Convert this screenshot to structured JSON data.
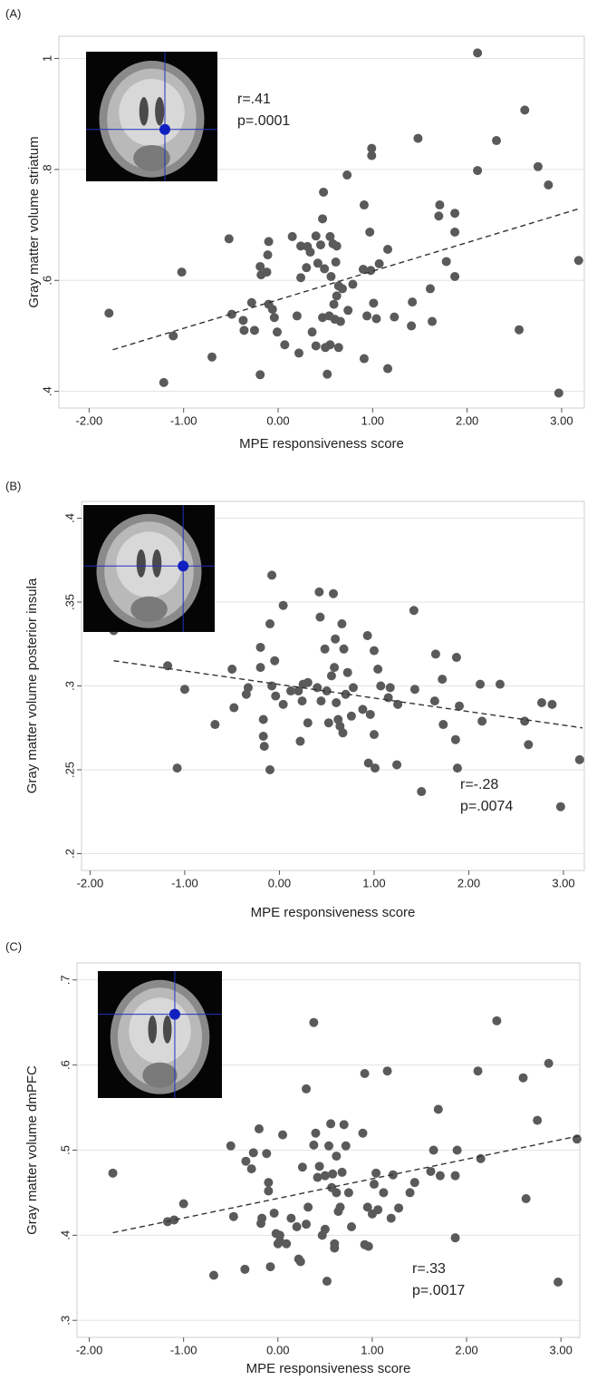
{
  "chart_data": [
    {
      "type": "scatter",
      "panel_label": "(A)",
      "xlabel": "MPE responsiveness score",
      "ylabel": "Gray matter volume striatum",
      "annotations": [
        "r=.41",
        "p=.0001"
      ],
      "color": "#5a5a5a",
      "grid": true,
      "xlim": [
        -2.32,
        3.24
      ],
      "ylim": [
        0.37,
        1.04
      ],
      "xticks": [
        {
          "value": -2,
          "label": "-2.00"
        },
        {
          "value": -1,
          "label": "-1.00"
        },
        {
          "value": 0,
          "label": "0.00"
        },
        {
          "value": 1,
          "label": "1.00"
        },
        {
          "value": 2,
          "label": "2.00"
        },
        {
          "value": 3,
          "label": "3.00"
        }
      ],
      "yticks": [
        {
          "value": 0.4,
          "label": ".4"
        },
        {
          "value": 0.6,
          "label": ".6"
        },
        {
          "value": 0.8,
          "label": ".8"
        },
        1
      ],
      "x": [
        -1.79,
        -1.21,
        -1.11,
        -1.02,
        -0.7,
        -0.52,
        -0.49,
        -0.37,
        -0.36,
        -0.28,
        -0.25,
        -0.19,
        -0.19,
        -0.18,
        -0.12,
        -0.11,
        -0.1,
        -0.1,
        -0.06,
        -0.04,
        -0.01,
        0.07,
        0.15,
        0.2,
        0.24,
        0.24,
        0.22,
        0.3,
        0.31,
        0.34,
        0.36,
        0.4,
        0.4,
        0.42,
        0.45,
        0.47,
        0.47,
        0.48,
        0.49,
        0.5,
        0.52,
        0.54,
        0.55,
        0.56,
        0.55,
        0.58,
        0.59,
        0.6,
        0.61,
        0.62,
        0.62,
        0.64,
        0.64,
        0.66,
        0.68,
        0.73,
        0.74,
        0.79,
        0.9,
        0.91,
        0.91,
        0.94,
        0.97,
        0.98,
        0.99,
        0.99,
        1.01,
        1.04,
        1.07,
        1.16,
        1.16,
        1.23,
        1.41,
        1.42,
        1.48,
        1.61,
        1.63,
        1.71,
        1.7,
        1.78,
        1.87,
        1.87,
        1.87,
        2.11,
        2.11,
        2.31,
        2.55,
        2.61,
        2.75,
        2.86,
        2.97,
        3.18
      ],
      "values": [
        0.541,
        0.416,
        0.5,
        0.615,
        0.462,
        0.675,
        0.539,
        0.528,
        0.51,
        0.56,
        0.51,
        0.625,
        0.43,
        0.61,
        0.615,
        0.646,
        0.67,
        0.557,
        0.548,
        0.533,
        0.507,
        0.484,
        0.679,
        0.536,
        0.662,
        0.605,
        0.469,
        0.623,
        0.661,
        0.651,
        0.507,
        0.68,
        0.482,
        0.631,
        0.664,
        0.533,
        0.711,
        0.759,
        0.621,
        0.479,
        0.431,
        0.536,
        0.679,
        0.607,
        0.484,
        0.666,
        0.557,
        0.53,
        0.633,
        0.572,
        0.662,
        0.59,
        0.479,
        0.526,
        0.585,
        0.79,
        0.546,
        0.593,
        0.62,
        0.736,
        0.459,
        0.536,
        0.687,
        0.618,
        0.825,
        0.838,
        0.559,
        0.531,
        0.63,
        0.441,
        0.656,
        0.534,
        0.518,
        0.561,
        0.856,
        0.585,
        0.526,
        0.736,
        0.716,
        0.634,
        0.721,
        0.607,
        0.687,
        0.798,
        1.01,
        0.852,
        0.511,
        0.907,
        0.805,
        0.772,
        0.397,
        0.636
      ],
      "trend": {
        "x": [
          -1.75,
          3.2
        ],
        "y": [
          0.475,
          0.73
        ]
      }
    },
    {
      "type": "scatter",
      "panel_label": "(B)",
      "xlabel": "MPE responsiveness score",
      "ylabel": "Gray matter volume posterior insula",
      "annotations": [
        "r=-.28",
        "p=.0074"
      ],
      "color": "#5a5a5a",
      "grid": true,
      "xlim": [
        -2.09,
        3.22
      ],
      "ylim": [
        0.19,
        0.41
      ],
      "xticks": [
        {
          "value": -2,
          "label": "-2.00"
        },
        {
          "value": -1,
          "label": "-1.00"
        },
        {
          "value": 0,
          "label": "0.00"
        },
        {
          "value": 1,
          "label": "1.00"
        },
        {
          "value": 2,
          "label": "2.00"
        },
        {
          "value": 3,
          "label": "3.00"
        }
      ],
      "yticks": [
        {
          "value": 0.2,
          "label": ".2"
        },
        {
          "value": 0.25,
          "label": ".25"
        },
        {
          "value": 0.3,
          "label": ".3"
        },
        {
          "value": 0.35,
          "label": ".35"
        },
        {
          "value": 0.4,
          "label": ".4"
        }
      ],
      "x": [
        -1.75,
        -1.18,
        -1.08,
        -1.0,
        -0.68,
        -0.5,
        -0.48,
        -0.35,
        -0.33,
        -0.2,
        -0.2,
        -0.17,
        -0.17,
        -0.16,
        -0.1,
        -0.1,
        -0.08,
        -0.08,
        -0.05,
        -0.04,
        0.04,
        0.04,
        0.12,
        0.2,
        0.22,
        0.24,
        0.25,
        0.3,
        0.3,
        0.4,
        0.42,
        0.43,
        0.44,
        0.48,
        0.5,
        0.52,
        0.55,
        0.57,
        0.58,
        0.59,
        0.6,
        0.62,
        0.64,
        0.66,
        0.67,
        0.68,
        0.7,
        0.72,
        0.76,
        0.78,
        0.88,
        0.93,
        0.94,
        0.96,
        1.0,
        1.0,
        1.01,
        1.04,
        1.07,
        1.15,
        1.17,
        1.24,
        1.25,
        1.42,
        1.43,
        1.5,
        1.64,
        1.65,
        1.72,
        1.73,
        1.86,
        1.87,
        1.88,
        1.9,
        2.12,
        2.14,
        2.33,
        2.59,
        2.63,
        2.77,
        2.88,
        2.97,
        3.17
      ],
      "values": [
        0.333,
        0.312,
        0.251,
        0.298,
        0.277,
        0.31,
        0.287,
        0.295,
        0.299,
        0.323,
        0.311,
        0.28,
        0.27,
        0.264,
        0.25,
        0.337,
        0.366,
        0.3,
        0.315,
        0.294,
        0.348,
        0.289,
        0.297,
        0.297,
        0.267,
        0.291,
        0.301,
        0.302,
        0.278,
        0.299,
        0.356,
        0.341,
        0.291,
        0.322,
        0.297,
        0.278,
        0.306,
        0.355,
        0.311,
        0.328,
        0.29,
        0.28,
        0.276,
        0.337,
        0.272,
        0.322,
        0.295,
        0.308,
        0.282,
        0.299,
        0.286,
        0.33,
        0.254,
        0.283,
        0.321,
        0.271,
        0.251,
        0.31,
        0.3,
        0.293,
        0.299,
        0.253,
        0.289,
        0.345,
        0.298,
        0.237,
        0.291,
        0.319,
        0.304,
        0.277,
        0.268,
        0.317,
        0.251,
        0.288,
        0.301,
        0.279,
        0.301,
        0.279,
        0.265,
        0.29,
        0.289,
        0.228,
        0.256
      ],
      "trend": {
        "x": [
          -1.75,
          3.2
        ],
        "y": [
          0.315,
          0.275
        ]
      }
    },
    {
      "type": "scatter",
      "panel_label": "(C)",
      "xlabel": "MPE responsiveness score",
      "ylabel": "Gray matter volume dmPFC",
      "annotations": [
        "r=.33",
        "p=.0017"
      ],
      "color": "#5a5a5a",
      "grid": true,
      "xlim": [
        -2.13,
        3.2
      ],
      "ylim": [
        0.28,
        0.72
      ],
      "xticks": [
        {
          "value": -2,
          "label": "-2.00"
        },
        {
          "value": -1,
          "label": "-1.00"
        },
        {
          "value": 0,
          "label": "0.00"
        },
        {
          "value": 1,
          "label": "1.00"
        },
        {
          "value": 2,
          "label": "2.00"
        },
        {
          "value": 3,
          "label": "3.00"
        }
      ],
      "yticks": [
        {
          "value": 0.3,
          "label": ".3"
        },
        {
          "value": 0.4,
          "label": ".4"
        },
        {
          "value": 0.5,
          "label": ".5"
        },
        {
          "value": 0.6,
          "label": ".6"
        },
        {
          "value": 0.7,
          "label": ".7"
        }
      ],
      "x": [
        -1.75,
        -1.17,
        -1.1,
        -1.0,
        -0.68,
        -0.5,
        -0.47,
        -0.35,
        -0.34,
        -0.28,
        -0.26,
        -0.2,
        -0.18,
        -0.17,
        -0.12,
        -0.1,
        -0.08,
        -0.1,
        -0.04,
        -0.02,
        0.0,
        0.02,
        0.02,
        0.05,
        0.09,
        0.14,
        0.2,
        0.22,
        0.24,
        0.26,
        0.3,
        0.3,
        0.32,
        0.38,
        0.38,
        0.4,
        0.42,
        0.44,
        0.47,
        0.5,
        0.5,
        0.52,
        0.54,
        0.56,
        0.57,
        0.58,
        0.6,
        0.6,
        0.62,
        0.62,
        0.64,
        0.66,
        0.68,
        0.7,
        0.72,
        0.75,
        0.78,
        0.9,
        0.92,
        0.92,
        0.95,
        0.96,
        1.0,
        1.02,
        1.04,
        1.06,
        1.12,
        1.16,
        1.2,
        1.22,
        1.28,
        1.4,
        1.45,
        1.62,
        1.65,
        1.7,
        1.72,
        1.88,
        1.88,
        1.9,
        2.12,
        2.15,
        2.32,
        2.6,
        2.63,
        2.75,
        2.87,
        2.97,
        3.17
      ],
      "values": [
        0.473,
        0.416,
        0.418,
        0.437,
        0.353,
        0.505,
        0.422,
        0.36,
        0.487,
        0.478,
        0.497,
        0.525,
        0.414,
        0.42,
        0.496,
        0.462,
        0.363,
        0.452,
        0.426,
        0.402,
        0.39,
        0.393,
        0.4,
        0.518,
        0.39,
        0.42,
        0.41,
        0.372,
        0.369,
        0.48,
        0.572,
        0.413,
        0.433,
        0.506,
        0.65,
        0.52,
        0.468,
        0.481,
        0.4,
        0.47,
        0.407,
        0.346,
        0.505,
        0.531,
        0.456,
        0.472,
        0.39,
        0.385,
        0.493,
        0.45,
        0.428,
        0.433,
        0.474,
        0.53,
        0.505,
        0.45,
        0.41,
        0.52,
        0.59,
        0.389,
        0.433,
        0.387,
        0.425,
        0.46,
        0.473,
        0.43,
        0.45,
        0.593,
        0.42,
        0.471,
        0.432,
        0.45,
        0.462,
        0.475,
        0.5,
        0.548,
        0.47,
        0.47,
        0.397,
        0.5,
        0.593,
        0.49,
        0.652,
        0.585,
        0.443,
        0.535,
        0.602,
        0.345,
        0.513
      ],
      "trend": {
        "x": [
          -1.75,
          3.2
        ],
        "y": [
          0.403,
          0.517
        ]
      }
    }
  ]
}
